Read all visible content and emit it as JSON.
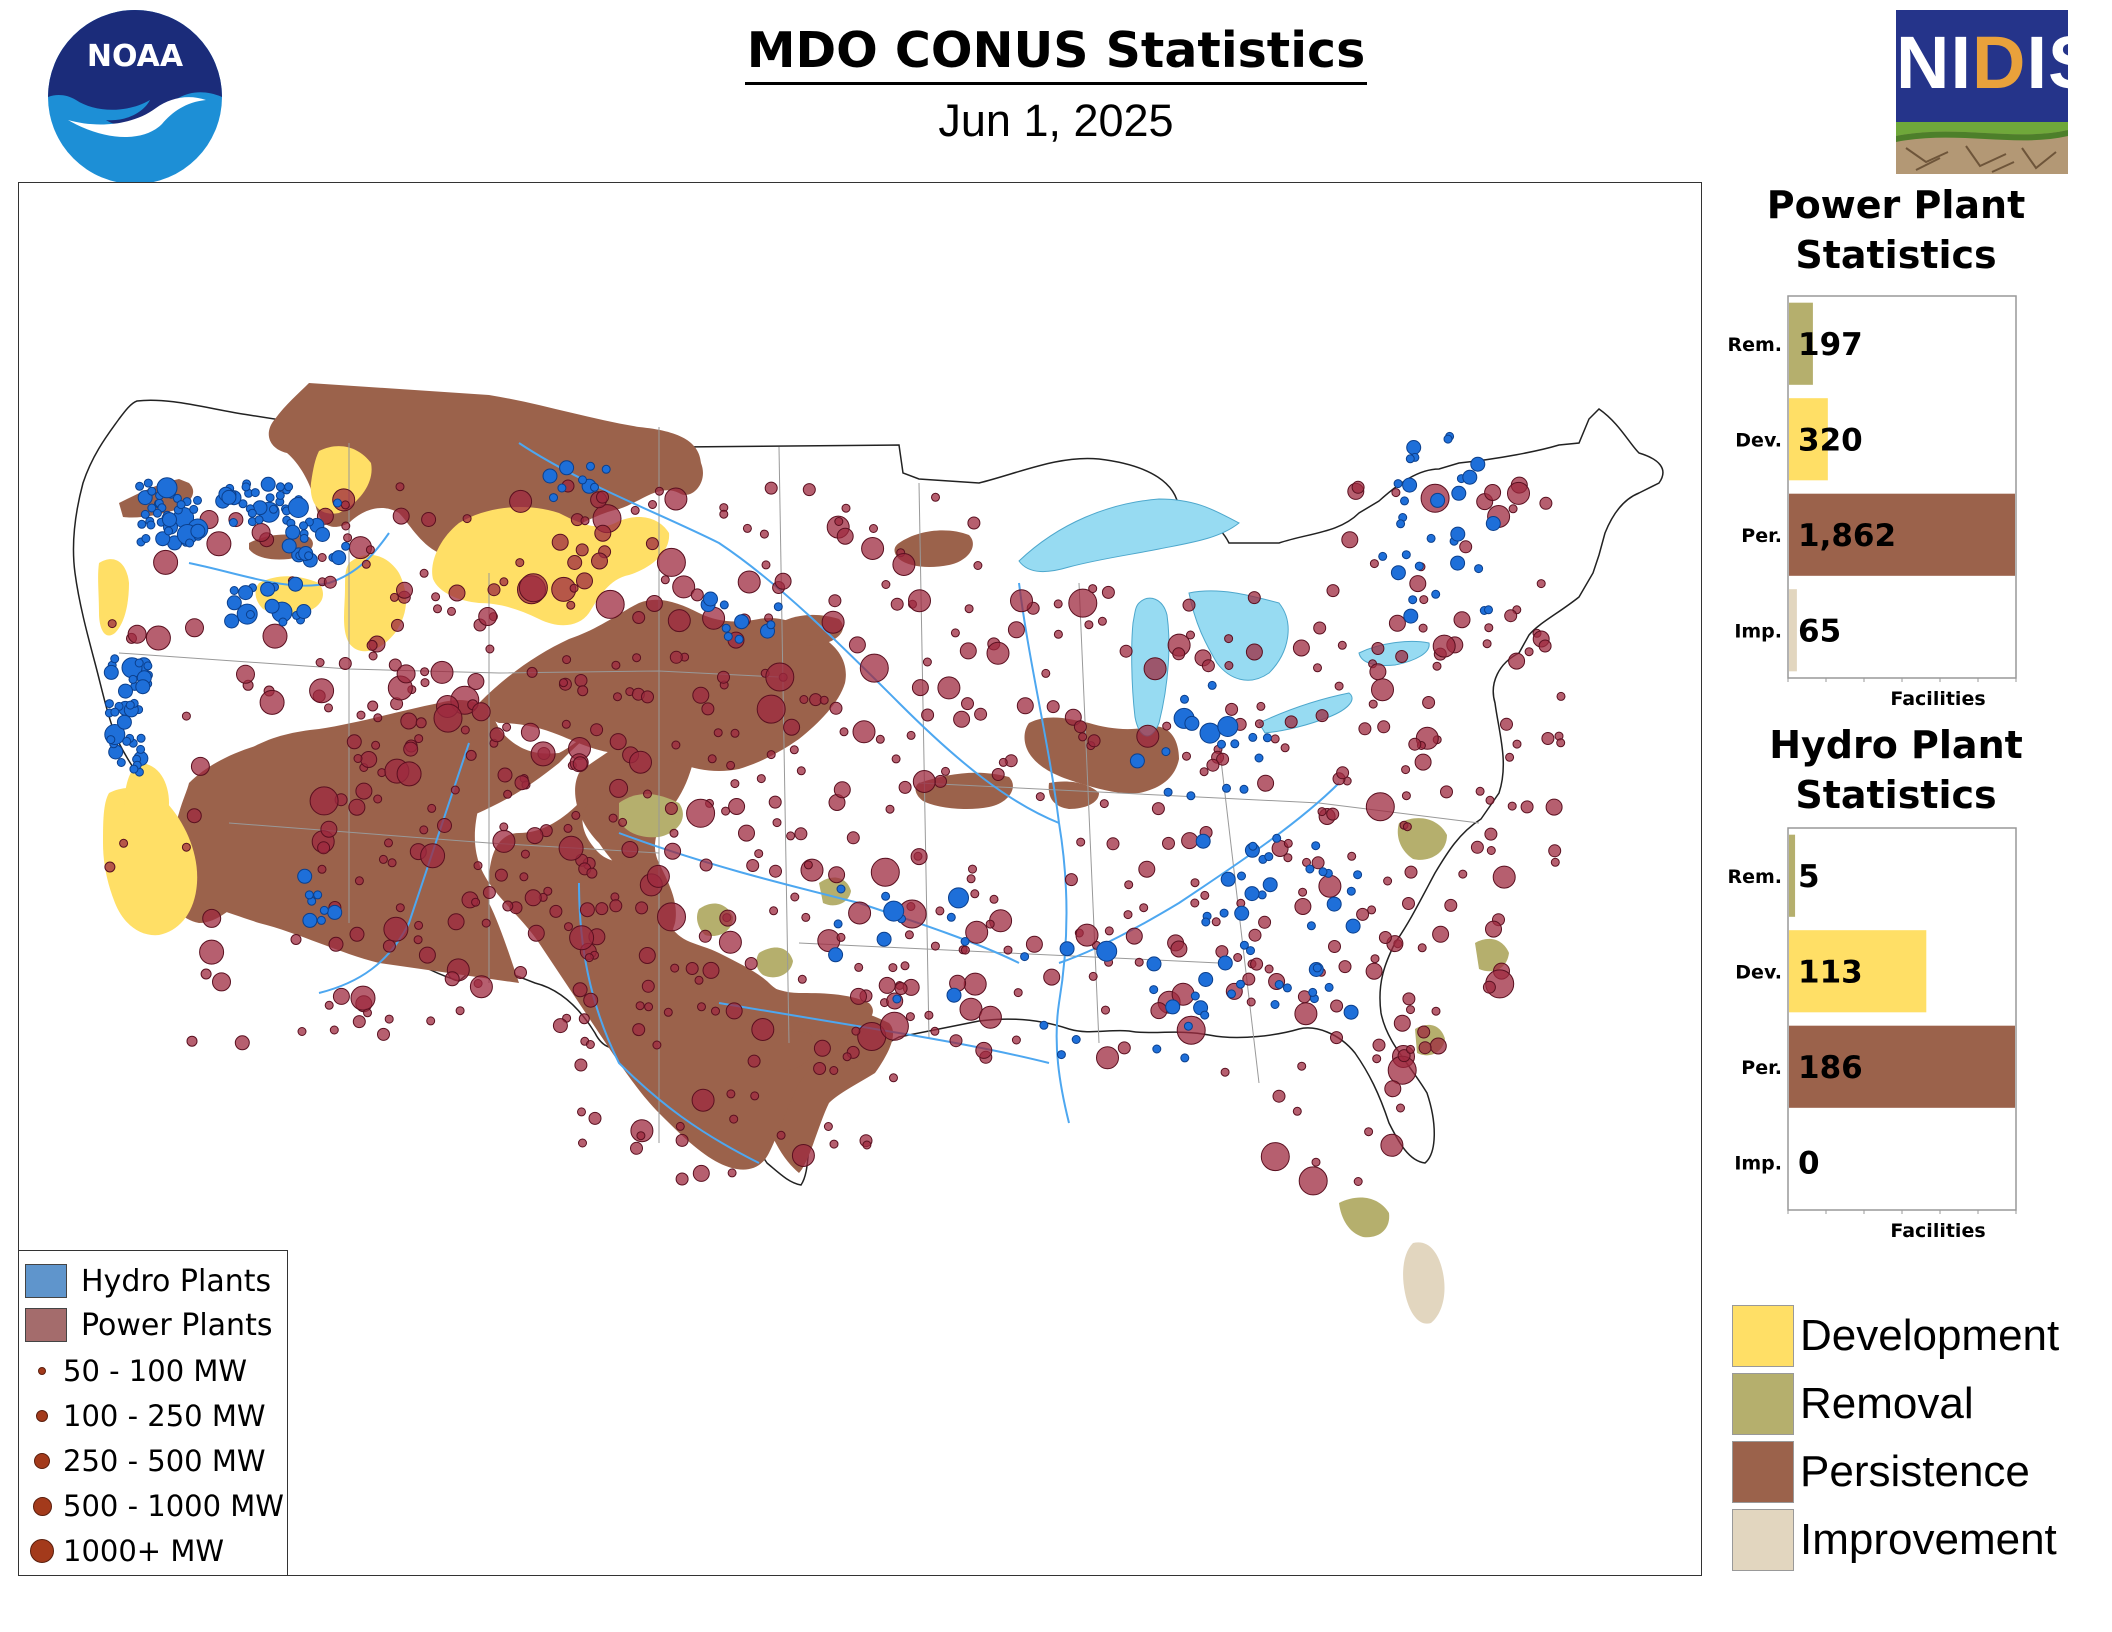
{
  "header": {
    "title": "MDO CONUS Statistics",
    "date": "Jun 1, 2025"
  },
  "logos": {
    "noaa": {
      "text": "NOAA",
      "icon": "noaa-logo-icon"
    },
    "nidis": {
      "text_prefix": "NI",
      "text_highlight": "D",
      "text_suffix": "IS",
      "icon": "nidis-logo-icon"
    }
  },
  "colors": {
    "development": "#ffdf66",
    "removal": "#b5af6d",
    "persistence": "#9b624b",
    "improvement": "#e2d6bf",
    "hydro": "#1e6fd9",
    "power": "#9e2a3f",
    "lakes": "#97dbf2"
  },
  "map_legend": {
    "hydro_label": "Hydro Plants",
    "power_label": "Power Plants",
    "sizes": [
      "50 - 100 MW",
      "100 - 250 MW",
      "250 - 500 MW",
      "500 - 1000 MW",
      "1000+ MW"
    ]
  },
  "power_panel": {
    "title_line1": "Power Plant",
    "title_line2": "Statistics",
    "x_label": "Facilities"
  },
  "hydro_panel": {
    "title_line1": "Hydro Plant",
    "title_line2": "Statistics",
    "x_label": "Facilities"
  },
  "category_legend": {
    "development": "Development",
    "removal": "Removal",
    "persistence": "Persistence",
    "improvement": "Improvement"
  },
  "chart_data": [
    {
      "type": "bar",
      "orientation": "horizontal",
      "title": "Power Plant Statistics",
      "xlabel": "Facilities",
      "categories": [
        "Rem.",
        "Dev.",
        "Per.",
        "Imp."
      ],
      "values": [
        197,
        320,
        1862,
        65
      ],
      "value_labels": [
        "197",
        "320",
        "1,862",
        "65"
      ],
      "colors": [
        "#b5af6d",
        "#ffdf66",
        "#9b624b",
        "#e2d6bf"
      ],
      "xlim": [
        0,
        1862
      ]
    },
    {
      "type": "bar",
      "orientation": "horizontal",
      "title": "Hydro Plant Statistics",
      "xlabel": "Facilities",
      "categories": [
        "Rem.",
        "Dev.",
        "Per.",
        "Imp."
      ],
      "values": [
        5,
        113,
        186,
        0
      ],
      "value_labels": [
        "5",
        "113",
        "186",
        "0"
      ],
      "colors": [
        "#b5af6d",
        "#ffdf66",
        "#9b624b",
        "#e2d6bf"
      ],
      "xlim": [
        0,
        186
      ]
    }
  ]
}
